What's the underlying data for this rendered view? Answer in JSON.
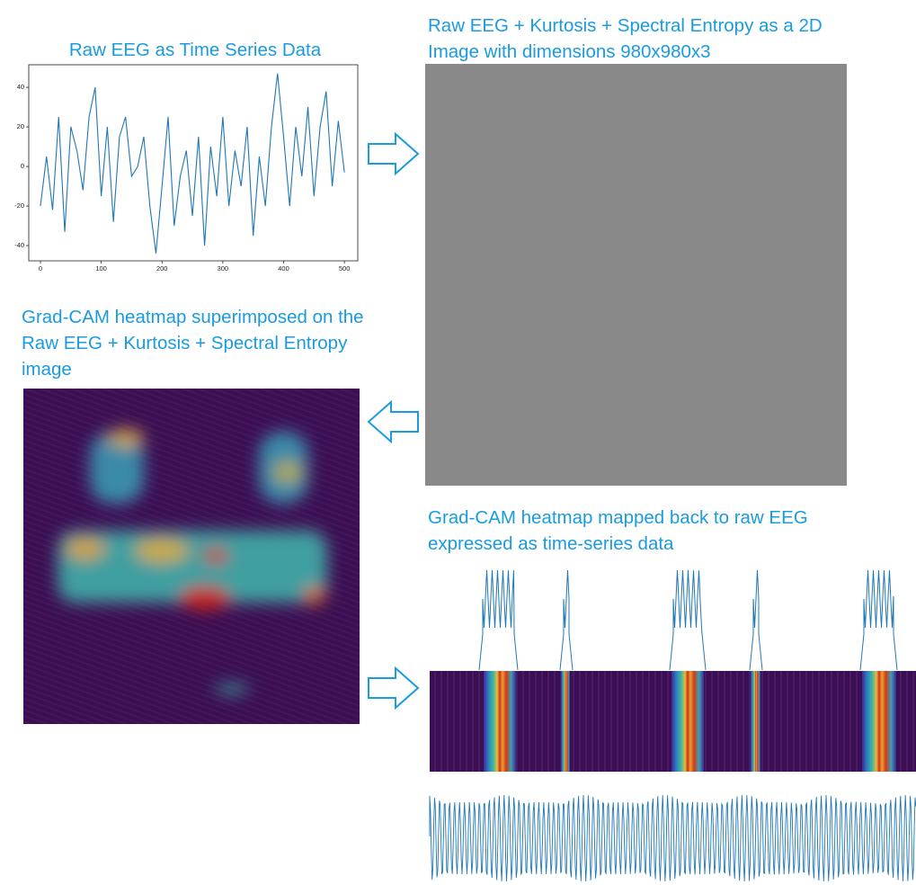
{
  "titles": {
    "raw_eeg": "Raw EEG as Time Series Data",
    "image": [
      "Raw EEG + Kurtosis + Spectral Entropy as a 2D",
      "Image with dimensions 980x980x3"
    ],
    "gradcam": [
      "Grad-CAM heatmap superimposed on the",
      "Raw EEG + Kurtosis + Spectral Entropy",
      "image"
    ],
    "mapped": [
      "Grad-CAM heatmap mapped back to raw EEG",
      "expressed as time-series data"
    ]
  },
  "chart_data": {
    "type": "line",
    "color": "#1f77b4",
    "x": [
      0,
      10,
      20,
      30,
      40,
      50,
      60,
      70,
      80,
      90,
      100,
      110,
      120,
      130,
      140,
      150,
      160,
      170,
      180,
      190,
      200,
      210,
      220,
      230,
      240,
      250,
      260,
      270,
      280,
      290,
      300,
      310,
      320,
      330,
      340,
      350,
      360,
      370,
      380,
      390,
      400,
      410,
      420,
      430,
      440,
      450,
      460,
      470,
      480,
      490,
      500
    ],
    "values": [
      -20,
      5,
      -22,
      25,
      -33,
      20,
      8,
      -12,
      25,
      40,
      -15,
      20,
      -28,
      15,
      25,
      -5,
      0,
      15,
      -20,
      -44,
      -10,
      25,
      -30,
      -5,
      8,
      -25,
      15,
      -40,
      10,
      -15,
      25,
      -20,
      8,
      -10,
      20,
      -35,
      5,
      -20,
      20,
      47,
      15,
      -20,
      20,
      -5,
      30,
      -15,
      20,
      38,
      -10,
      23,
      -3
    ],
    "xlim": [
      -19.2,
      522
    ],
    "ylim": [
      -47.7,
      51.4
    ],
    "xticks": [
      0,
      100,
      200,
      300,
      400,
      500
    ],
    "yticks": [
      -40,
      -20,
      0,
      20,
      40
    ]
  }
}
